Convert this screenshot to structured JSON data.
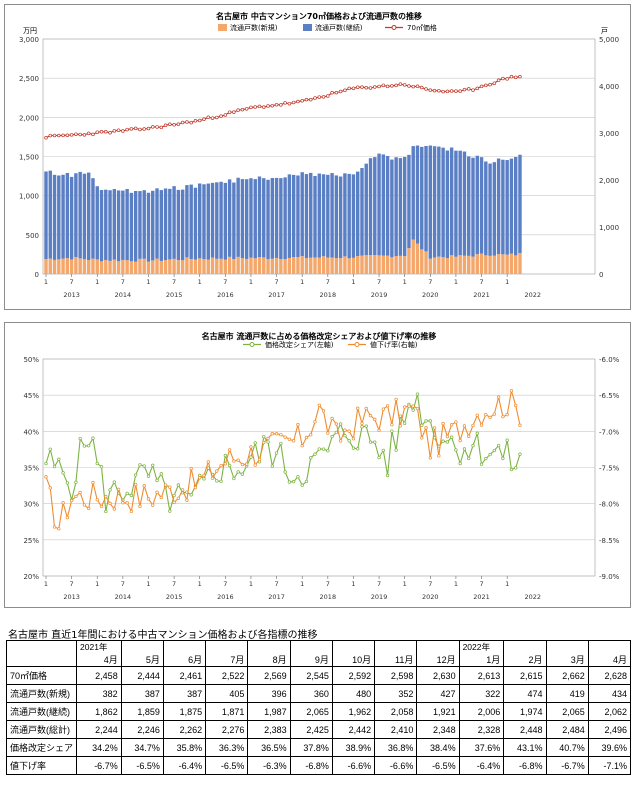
{
  "colors": {
    "new_bar": "#f4a76b",
    "cont_bar": "#5b7fc4",
    "price_line": "#c0392b",
    "share_line": "#7cb342",
    "cut_line": "#f08c2e",
    "grid": "#c8c8c8"
  },
  "chart_data": [
    {
      "type": "bar",
      "title": "名古屋市 中古マンション70㎡価格および流通戸数の推移",
      "left_unit": "万円",
      "right_unit": "戸",
      "ylim_left": [
        0,
        3000
      ],
      "ylim_right": [
        0,
        5000
      ],
      "y_ticks_left": [
        "0",
        "500",
        "1,000",
        "1,500",
        "2,000",
        "2,500",
        "3,000"
      ],
      "y_ticks_right": [
        "0",
        "1,000",
        "2,000",
        "3,000",
        "4,000",
        "5,000"
      ],
      "month_ticks": [
        "1",
        "7",
        "1",
        "7",
        "1",
        "7",
        "1",
        "7",
        "1",
        "7",
        "1",
        "7",
        "1",
        "7",
        "1",
        "7",
        "1",
        "7",
        "1"
      ],
      "year_labels": [
        "2013",
        "2014",
        "2015",
        "2016",
        "2017",
        "2018",
        "2019",
        "2020",
        "2021",
        "2022"
      ],
      "legend": [
        "流通戸数(新規)",
        "流通戸数(継続)",
        "70㎡価格"
      ],
      "series": [
        {
          "name": "流通戸数(新規)",
          "axis": "right",
          "start": "2013-01",
          "end": "2022-04",
          "values": [],
          "keyframes": [
            [
              0,
              320
            ],
            [
              6,
              340
            ],
            [
              12,
              300
            ],
            [
              24,
              290
            ],
            [
              36,
              330
            ],
            [
              48,
              340
            ],
            [
              60,
              350
            ],
            [
              72,
              360
            ],
            [
              84,
              400
            ],
            [
              86,
              720
            ],
            [
              90,
              360
            ],
            [
              96,
              370
            ],
            [
              104,
              420
            ],
            [
              108,
              400
            ],
            [
              112,
              430
            ]
          ]
        },
        {
          "name": "流通戸数(継続)",
          "axis": "right",
          "start": "2013-01",
          "end": "2022-04",
          "values": [],
          "keyframes": [
            [
              0,
              1850
            ],
            [
              6,
              1780
            ],
            [
              10,
              1850
            ],
            [
              12,
              1520
            ],
            [
              24,
              1470
            ],
            [
              36,
              1570
            ],
            [
              48,
              1680
            ],
            [
              60,
              1770
            ],
            [
              72,
              1770
            ],
            [
              78,
              2150
            ],
            [
              84,
              2070
            ],
            [
              86,
              1960
            ],
            [
              90,
              2380
            ],
            [
              96,
              2250
            ],
            [
              104,
              1980
            ],
            [
              108,
              2050
            ],
            [
              112,
              2062
            ]
          ]
        },
        {
          "name": "70㎡価格",
          "axis": "left",
          "start": "2013-01",
          "end": "2022-04",
          "values": [],
          "keyframes": [
            [
              0,
              1750
            ],
            [
              12,
              1800
            ],
            [
              24,
              1860
            ],
            [
              36,
              1960
            ],
            [
              48,
              2120
            ],
            [
              60,
              2200
            ],
            [
              72,
              2370
            ],
            [
              84,
              2420
            ],
            [
              90,
              2350
            ],
            [
              96,
              2320
            ],
            [
              100,
              2360
            ],
            [
              108,
              2500
            ],
            [
              114,
              2560
            ],
            [
              118,
              2660
            ],
            [
              120,
              2628
            ]
          ]
        }
      ]
    },
    {
      "type": "line",
      "title": "名古屋市 流通戸数に占める価格改定シェアおよび値下げ率の推移",
      "ylim_left": [
        20,
        50
      ],
      "ylim_right": [
        -9.0,
        -6.0
      ],
      "y_ticks_left": [
        "20%",
        "25%",
        "30%",
        "35%",
        "40%",
        "45%",
        "50%"
      ],
      "y_ticks_right": [
        "-9.0%",
        "-8.5%",
        "-8.0%",
        "-7.5%",
        "-7.0%",
        "-6.5%",
        "-6.0%"
      ],
      "month_ticks": [
        "1",
        "7",
        "1",
        "7",
        "1",
        "7",
        "1",
        "7",
        "1",
        "7",
        "1",
        "7",
        "1",
        "7",
        "1",
        "7",
        "1",
        "7",
        "1"
      ],
      "year_labels": [
        "2013",
        "2014",
        "2015",
        "2016",
        "2017",
        "2018",
        "2019",
        "2020",
        "2021",
        "2022"
      ],
      "legend": [
        "価格改定シェア(左軸)",
        "値下げ率(右軸)"
      ],
      "series": [
        {
          "name": "価格改定シェア(左軸)",
          "axis": "left",
          "start": "2013-01",
          "end": "2022-04",
          "values": [],
          "keyframes": [
            [
              0,
              36
            ],
            [
              6,
              33
            ],
            [
              10,
              40
            ],
            [
              14,
              31
            ],
            [
              18,
              32
            ],
            [
              24,
              34
            ],
            [
              28,
              31
            ],
            [
              34,
              30
            ],
            [
              40,
              35
            ],
            [
              46,
              35
            ],
            [
              52,
              38
            ],
            [
              58,
              34
            ],
            [
              64,
              36
            ],
            [
              70,
              40
            ],
            [
              76,
              39
            ],
            [
              80,
              36
            ],
            [
              86,
              45
            ],
            [
              90,
              41
            ],
            [
              96,
              38
            ],
            [
              100,
              38
            ],
            [
              106,
              37
            ],
            [
              112,
              35
            ],
            [
              116,
              38
            ],
            [
              118,
              43
            ],
            [
              120,
              39.6
            ]
          ]
        },
        {
          "name": "値下げ率(右軸)",
          "axis": "right",
          "start": "2013-01",
          "end": "2022-04",
          "values": [],
          "keyframes": [
            [
              0,
              -7.8
            ],
            [
              3,
              -8.3
            ],
            [
              6,
              -7.9
            ],
            [
              12,
              -7.9
            ],
            [
              18,
              -7.9
            ],
            [
              24,
              -7.9
            ],
            [
              30,
              -7.8
            ],
            [
              36,
              -7.7
            ],
            [
              42,
              -7.4
            ],
            [
              48,
              -7.3
            ],
            [
              54,
              -7.2
            ],
            [
              60,
              -7.1
            ],
            [
              64,
              -6.7
            ],
            [
              68,
              -7.1
            ],
            [
              72,
              -6.9
            ],
            [
              76,
              -6.8
            ],
            [
              80,
              -6.8
            ],
            [
              86,
              -6.7
            ],
            [
              90,
              -7.2
            ],
            [
              96,
              -7.0
            ],
            [
              102,
              -6.7
            ],
            [
              108,
              -6.6
            ],
            [
              112,
              -6.75
            ],
            [
              114,
              -6.5
            ],
            [
              116,
              -6.8
            ],
            [
              118,
              -6.7
            ],
            [
              120,
              -7.1
            ]
          ]
        }
      ]
    },
    {
      "type": "table",
      "title": "名古屋市 直近1年間における中古マンション価格および各指標の推移",
      "year_row": [
        "2021年",
        "",
        "",
        "",
        "",
        "",
        "",
        "",
        "",
        "2022年",
        "",
        "",
        ""
      ],
      "columns": [
        "4月",
        "5月",
        "6月",
        "7月",
        "8月",
        "9月",
        "10月",
        "11月",
        "12月",
        "1月",
        "2月",
        "3月",
        "4月"
      ],
      "rows": [
        {
          "label": "70㎡価格",
          "values": [
            "2,458",
            "2,444",
            "2,461",
            "2,522",
            "2,569",
            "2,545",
            "2,592",
            "2,598",
            "2,630",
            "2,613",
            "2,615",
            "2,662",
            "2,628"
          ]
        },
        {
          "label": "流通戸数(新規)",
          "values": [
            "382",
            "387",
            "387",
            "405",
            "396",
            "360",
            "480",
            "352",
            "427",
            "322",
            "474",
            "419",
            "434"
          ]
        },
        {
          "label": "流通戸数(継続)",
          "values": [
            "1,862",
            "1,859",
            "1,875",
            "1,871",
            "1,987",
            "2,065",
            "1,962",
            "2,058",
            "1,921",
            "2,006",
            "1,974",
            "2,065",
            "2,062"
          ]
        },
        {
          "label": "流通戸数(総計)",
          "values": [
            "2,244",
            "2,246",
            "2,262",
            "2,276",
            "2,383",
            "2,425",
            "2,442",
            "2,410",
            "2,348",
            "2,328",
            "2,448",
            "2,484",
            "2,496"
          ]
        },
        {
          "label": "価格改定シェア",
          "values": [
            "34.2%",
            "34.7%",
            "35.8%",
            "36.3%",
            "36.5%",
            "37.8%",
            "38.9%",
            "36.8%",
            "38.4%",
            "37.6%",
            "43.1%",
            "40.7%",
            "39.6%"
          ]
        },
        {
          "label": "値下げ率",
          "values": [
            "-6.7%",
            "-6.5%",
            "-6.4%",
            "-6.5%",
            "-6.3%",
            "-6.8%",
            "-6.6%",
            "-6.6%",
            "-6.5%",
            "-6.4%",
            "-6.8%",
            "-6.7%",
            "-7.1%"
          ]
        }
      ]
    }
  ]
}
